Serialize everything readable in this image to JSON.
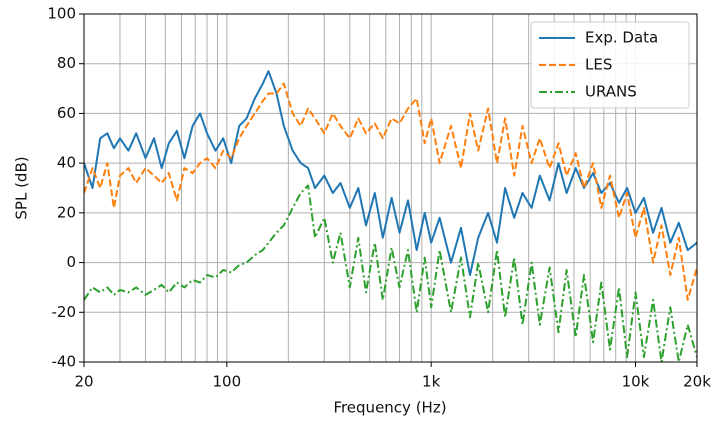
{
  "chart_data": {
    "type": "line",
    "xlabel": "Frequency (Hz)",
    "ylabel": "SPL (dB)",
    "xscale": "log",
    "grid": true,
    "legend": "upper right",
    "xlim": [
      20,
      20000
    ],
    "ylim": [
      -40,
      100
    ],
    "xticks": [
      20,
      100,
      {
        "value": 1000,
        "label": "1k"
      },
      {
        "value": 10000,
        "label": "10k"
      },
      {
        "value": 20000,
        "label": "20k"
      }
    ],
    "xminorticks": [
      30,
      40,
      50,
      60,
      70,
      80,
      90,
      200,
      300,
      400,
      500,
      600,
      700,
      800,
      900,
      2000,
      3000,
      4000,
      5000,
      6000,
      7000,
      8000,
      9000
    ],
    "yticks": [
      -40,
      -20,
      0,
      20,
      40,
      60,
      80,
      100
    ],
    "x": [
      20,
      22,
      24,
      26,
      28,
      30,
      33,
      36,
      40,
      44,
      48,
      52,
      57,
      62,
      68,
      74,
      80,
      88,
      96,
      105,
      115,
      125,
      137,
      150,
      160,
      175,
      190,
      210,
      230,
      250,
      270,
      300,
      330,
      360,
      400,
      440,
      480,
      530,
      580,
      640,
      700,
      770,
      850,
      930,
      1000,
      1100,
      1250,
      1400,
      1550,
      1700,
      1900,
      2100,
      2300,
      2550,
      2800,
      3100,
      3400,
      3800,
      4200,
      4600,
      5100,
      5600,
      6200,
      6800,
      7500,
      8300,
      9100,
      10000,
      11000,
      12200,
      13400,
      14800,
      16300,
      18000,
      20000
    ],
    "series": [
      {
        "name": "Exp. Data",
        "color": "#1f77b4",
        "linestyle": "solid",
        "values": [
          40,
          30,
          50,
          52,
          46,
          50,
          45,
          52,
          42,
          50,
          38,
          48,
          53,
          42,
          55,
          60,
          52,
          45,
          50,
          40,
          55,
          58,
          66,
          72,
          77,
          68,
          55,
          45,
          40,
          38,
          30,
          35,
          28,
          32,
          22,
          30,
          15,
          28,
          10,
          26,
          12,
          25,
          5,
          20,
          8,
          18,
          0,
          14,
          -5,
          10,
          20,
          8,
          30,
          18,
          28,
          22,
          35,
          25,
          40,
          28,
          38,
          30,
          36,
          28,
          32,
          24,
          30,
          20,
          26,
          12,
          22,
          8,
          16,
          5,
          8
        ]
      },
      {
        "name": "LES",
        "color": "#ff7f0e",
        "linestyle": "dashed",
        "values": [
          28,
          38,
          30,
          40,
          22,
          35,
          38,
          32,
          38,
          35,
          32,
          36,
          25,
          38,
          36,
          40,
          42,
          38,
          45,
          42,
          50,
          55,
          60,
          65,
          68,
          68,
          72,
          60,
          55,
          62,
          58,
          52,
          60,
          55,
          50,
          58,
          52,
          56,
          50,
          58,
          56,
          62,
          66,
          48,
          58,
          40,
          55,
          38,
          60,
          45,
          62,
          40,
          58,
          35,
          55,
          40,
          50,
          38,
          48,
          35,
          44,
          30,
          40,
          22,
          35,
          18,
          28,
          10,
          22,
          0,
          15,
          -5,
          10,
          -15,
          -2
        ]
      },
      {
        "name": "URANS",
        "color": "#2ca02c",
        "linestyle": "dashdot",
        "values": [
          -15,
          -10,
          -12,
          -10,
          -13,
          -11,
          -12,
          -10,
          -13,
          -11,
          -9,
          -12,
          -8,
          -10,
          -7,
          -8,
          -5,
          -6,
          -3,
          -4,
          -1,
          0,
          3,
          5,
          8,
          12,
          15,
          22,
          28,
          31,
          10,
          18,
          0,
          12,
          -10,
          10,
          -12,
          8,
          -15,
          6,
          -10,
          5,
          -20,
          2,
          -18,
          5,
          -20,
          2,
          -22,
          0,
          -20,
          5,
          -22,
          2,
          -25,
          0,
          -25,
          -2,
          -28,
          -3,
          -30,
          -5,
          -32,
          -8,
          -35,
          -10,
          -38,
          -12,
          -38,
          -15,
          -40,
          -18,
          -40,
          -25,
          -38
        ]
      }
    ]
  }
}
